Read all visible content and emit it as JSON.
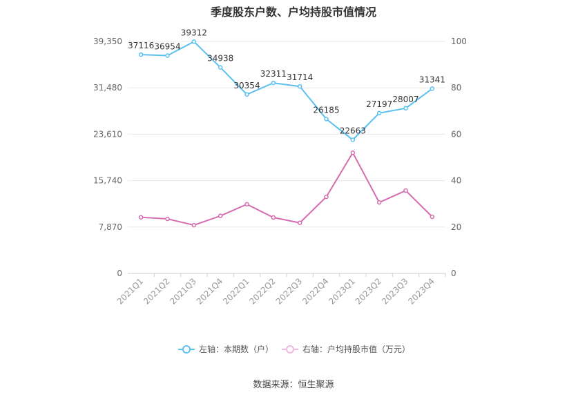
{
  "chart_data": {
    "type": "line",
    "title": "季度股东户数、户均持股市值情况",
    "categories": [
      "2021Q1",
      "2021Q2",
      "2021Q3",
      "2021Q4",
      "2022Q1",
      "2022Q2",
      "2022Q3",
      "2022Q4",
      "2023Q1",
      "2023Q2",
      "2023Q3",
      "2023Q4"
    ],
    "left_axis": {
      "ticks": [
        "0",
        "7,870",
        "15,740",
        "23,610",
        "31,480",
        "39,350"
      ],
      "ylim": [
        0,
        39350
      ]
    },
    "right_axis": {
      "ticks": [
        "0",
        "20",
        "40",
        "60",
        "80",
        "100"
      ],
      "ylim": [
        0,
        100
      ]
    },
    "series": [
      {
        "name": "左轴：本期数（户）",
        "axis": "left",
        "color": "#5bc0f0",
        "values": [
          37116,
          36954,
          39312,
          34938,
          30354,
          32311,
          31714,
          26185,
          22663,
          27197,
          28007,
          31341
        ],
        "labels": [
          "37116",
          "36954",
          "39312",
          "34938",
          "30354",
          "32311",
          "31714",
          "26185",
          "22663",
          "27197",
          "28007",
          "31341"
        ]
      },
      {
        "name": "右轴：户均持股市值（万元）",
        "axis": "right",
        "color": "#d66cb0",
        "values": [
          24.2,
          23.5,
          20.8,
          24.8,
          29.8,
          24.1,
          21.8,
          33.0,
          52.0,
          30.6,
          35.7,
          24.4
        ]
      }
    ],
    "grid": true,
    "legend_position": "bottom"
  },
  "source": "数据来源：恒生聚源"
}
